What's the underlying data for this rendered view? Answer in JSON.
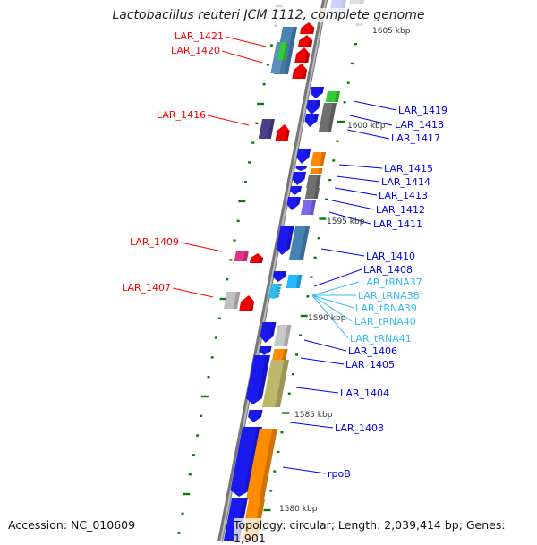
{
  "title": "Lactobacillus reuteri JCM 1112, complete genome",
  "footer": {
    "accession": "Accession: NC_010609",
    "topology": "Topology: circular; Length: 2,039,414 bp; Genes: 1,901"
  },
  "scale_labels": [
    "1605 kbp",
    "1600 kbp",
    "1595 kbp",
    "1590 kbp",
    "1585 kbp",
    "1580 kbp"
  ],
  "colors": {
    "minus_label": "#ff0000",
    "plus_label": "#0000ee",
    "trna_label": "#33bbee",
    "backbone": "#888888",
    "tick": "#0a7a0a"
  },
  "labels_left": [
    "LAR_1421",
    "LAR_1420",
    "LAR_1416",
    "LAR_1409",
    "LAR_1407"
  ],
  "labels_right": [
    "LAR_1419",
    "LAR_1418",
    "LAR_1417",
    "LAR_1415",
    "LAR_1414",
    "LAR_1413",
    "LAR_1412",
    "LAR_1411",
    "LAR_1410",
    "LAR_1408",
    "LAR_1406",
    "LAR_1405",
    "LAR_1404",
    "LAR_1403",
    "rpoB"
  ],
  "labels_trna": [
    "LAR_tRNA37",
    "LAR_tRNA38",
    "LAR_tRNA39",
    "LAR_tRNA40",
    "LAR_tRNA41"
  ]
}
